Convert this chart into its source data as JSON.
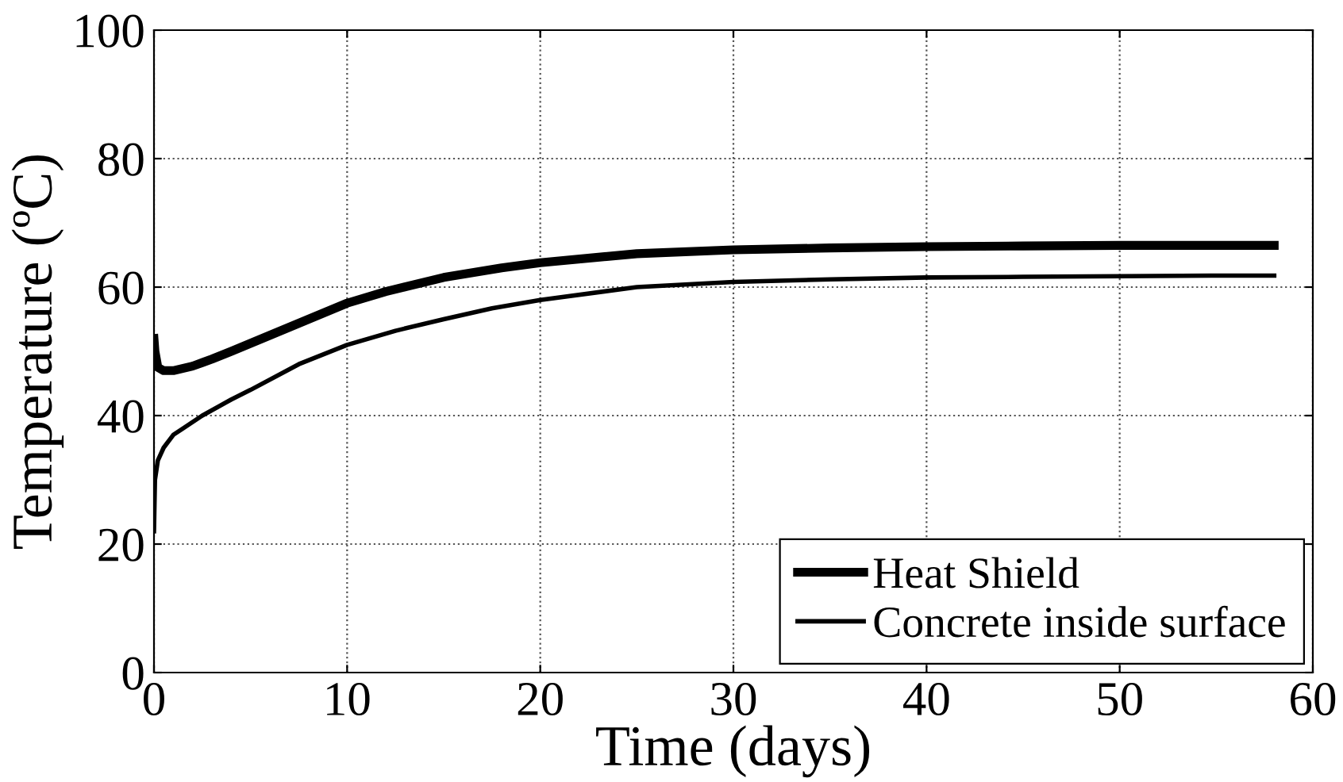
{
  "chart_data": {
    "type": "line",
    "xlabel": "Time (days)",
    "ylabel": "Temperature (ºC)",
    "xlim": [
      0,
      60
    ],
    "ylim": [
      0,
      100
    ],
    "xticks": [
      0,
      10,
      20,
      30,
      40,
      50,
      60
    ],
    "yticks": [
      0,
      20,
      40,
      60,
      80,
      100
    ],
    "grid": true,
    "legend": "bottom right",
    "line_style": "solid",
    "marker": "none",
    "series": [
      {
        "name": "Heat Shield",
        "color": "#000000",
        "x": [
          0,
          0.05,
          0.2,
          0.5,
          1,
          2,
          3,
          4,
          6,
          8,
          10,
          12,
          15,
          18,
          20,
          25,
          30,
          35,
          40,
          45,
          50,
          55,
          58
        ],
        "values": [
          52,
          50,
          47.5,
          47,
          47,
          47.7,
          48.8,
          50,
          52.5,
          55,
          57.5,
          59.3,
          61.5,
          63,
          63.8,
          65.2,
          65.8,
          66.1,
          66.3,
          66.4,
          66.5,
          66.5,
          66.5
        ]
      },
      {
        "name": "Concrete inside surface",
        "color": "#000000",
        "x": [
          0,
          0.05,
          0.2,
          0.5,
          1,
          1.5,
          2.5,
          4,
          5,
          7.5,
          10,
          12.5,
          15,
          17.5,
          20,
          25,
          30,
          35,
          40,
          45,
          50,
          55,
          58
        ],
        "values": [
          22,
          30,
          33,
          35,
          37,
          38,
          40,
          42.5,
          44,
          48,
          51,
          53.2,
          55,
          56.7,
          58,
          60,
          60.8,
          61.2,
          61.5,
          61.6,
          61.7,
          61.8,
          61.8
        ]
      }
    ]
  }
}
